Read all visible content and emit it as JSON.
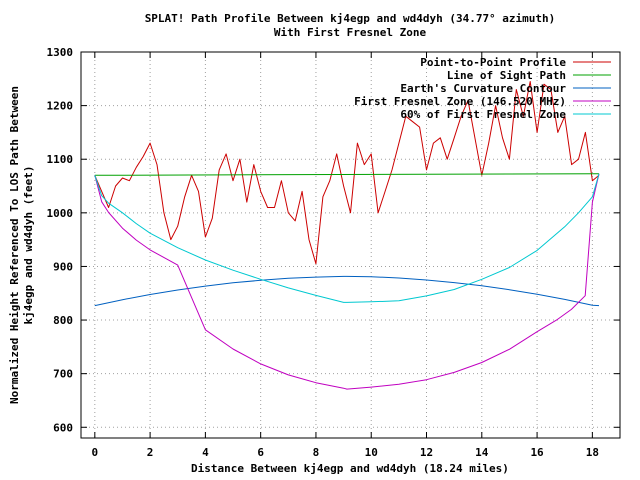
{
  "chart_data": {
    "type": "line",
    "title": "SPLAT! Path Profile Between kj4egp and wd4dyh (34.77° azimuth)",
    "subtitle": "With First Fresnel Zone",
    "xlabel": "Distance Between kj4egp and wd4dyh (18.24 miles)",
    "ylabel_line1": "Normalized Height Referenced To LOS Path Between",
    "ylabel_line2": "kj4egp and wd4dyh (feet)",
    "xlim": [
      -0.5,
      19
    ],
    "ylim": [
      580,
      1300
    ],
    "x_ticks": [
      0,
      2,
      4,
      6,
      8,
      10,
      12,
      14,
      16,
      18
    ],
    "y_ticks": [
      600,
      700,
      800,
      900,
      1000,
      1100,
      1200,
      1300
    ],
    "grid": true,
    "legend_position": "top-right",
    "series": [
      {
        "name": "Point-to-Point Profile",
        "color": "#cc0000",
        "x": [
          0,
          0.25,
          0.5,
          0.75,
          1,
          1.25,
          1.5,
          1.75,
          2,
          2.25,
          2.5,
          2.75,
          3,
          3.25,
          3.5,
          3.75,
          4,
          4.25,
          4.5,
          4.75,
          5,
          5.25,
          5.5,
          5.75,
          6,
          6.25,
          6.5,
          6.75,
          7,
          7.25,
          7.5,
          7.75,
          8,
          8.25,
          8.5,
          8.75,
          9,
          9.25,
          9.5,
          9.75,
          10,
          10.25,
          10.5,
          10.75,
          11,
          11.25,
          11.5,
          11.75,
          12,
          12.25,
          12.5,
          12.75,
          13,
          13.25,
          13.5,
          13.75,
          14,
          14.25,
          14.5,
          14.75,
          15,
          15.25,
          15.5,
          15.75,
          16,
          16.25,
          16.5,
          16.75,
          17,
          17.25,
          17.5,
          17.75,
          18,
          18.24
        ],
        "values": [
          1070,
          1040,
          1010,
          1050,
          1065,
          1060,
          1085,
          1105,
          1130,
          1090,
          1000,
          950,
          975,
          1030,
          1070,
          1040,
          955,
          990,
          1080,
          1110,
          1060,
          1100,
          1020,
          1090,
          1040,
          1010,
          1010,
          1060,
          1000,
          985,
          1040,
          950,
          905,
          1030,
          1060,
          1110,
          1050,
          1000,
          1130,
          1090,
          1110,
          1000,
          1040,
          1080,
          1130,
          1180,
          1170,
          1160,
          1080,
          1130,
          1140,
          1100,
          1140,
          1180,
          1210,
          1140,
          1070,
          1130,
          1200,
          1140,
          1100,
          1230,
          1180,
          1245,
          1150,
          1240,
          1230,
          1150,
          1180,
          1090,
          1100,
          1150,
          1060,
          1070
        ]
      },
      {
        "name": "Line of Sight Path",
        "color": "#00a000",
        "x": [
          0,
          18.24
        ],
        "values": [
          1070,
          1073
        ]
      },
      {
        "name": "Earth's Curvature Contour",
        "color": "#0060c0",
        "x": [
          0,
          1,
          2,
          3,
          4,
          5,
          6,
          7,
          8,
          9,
          9.12,
          10,
          11,
          12,
          13,
          14,
          15,
          16,
          17,
          18,
          18.24
        ],
        "values": [
          827,
          837.9,
          847.6,
          856.1,
          863.4,
          869.4,
          874.2,
          877.8,
          880.2,
          881.4,
          881.4,
          880.9,
          878.4,
          874.8,
          869.9,
          863.9,
          856.6,
          848.1,
          838.5,
          827.6,
          827
        ]
      },
      {
        "name": "First Fresnel Zone (146.520 MHz)",
        "color": "#c000c0",
        "x": [
          0,
          0.25,
          0.5,
          1,
          1.5,
          2,
          3,
          4,
          5,
          6,
          7,
          8,
          9,
          9.12,
          10,
          11,
          12,
          13,
          14,
          15,
          16,
          16.74,
          17.24,
          17.74,
          18,
          18.24
        ],
        "values": [
          1070,
          1020.5,
          1000.7,
          971.4,
          949.1,
          930.9,
          902.5,
          781.8,
          746.1,
          718.3,
          697.7,
          683.2,
          672.9,
          671.2,
          675.0,
          680.1,
          688.7,
          702.3,
          720.9,
          745.5,
          778.3,
          801.2,
          819.8,
          845.4,
          1020.0,
          1073
        ]
      },
      {
        "name": "60% of First Fresnel Zone",
        "color": "#00c8d0",
        "x": [
          0,
          0.25,
          0.5,
          1,
          1.5,
          2,
          3,
          4,
          5,
          6,
          7,
          8,
          9,
          9.12,
          10,
          11,
          12,
          13,
          14,
          15,
          16,
          17,
          17.5,
          18,
          18.24
        ],
        "values": [
          1070,
          1032,
          1018,
          1000,
          980,
          962,
          935,
          912,
          893,
          876,
          860,
          846,
          833,
          833,
          834,
          836,
          845,
          857,
          876,
          898,
          930,
          974,
          1000,
          1030,
          1073
        ]
      }
    ]
  }
}
